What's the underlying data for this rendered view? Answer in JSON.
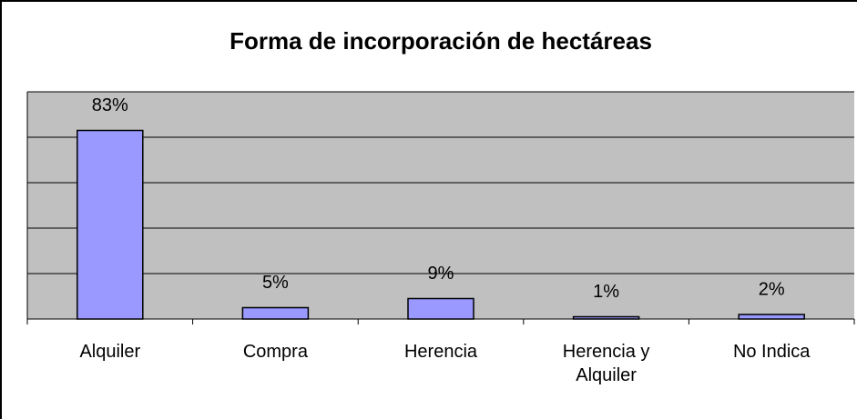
{
  "chart_data": {
    "type": "bar",
    "title": "Forma de incorporación de hectáreas",
    "categories": [
      "Alquiler",
      "Compra",
      "Herencia",
      "Herencia y Alquiler",
      "No Indica"
    ],
    "values": [
      83,
      5,
      9,
      1,
      2
    ],
    "value_labels": [
      "83%",
      "5%",
      "9%",
      "1%",
      "2%"
    ],
    "color": "#9999ff",
    "ylim": [
      0,
      100
    ],
    "yticks": [
      0,
      20,
      40,
      60,
      80,
      100
    ],
    "grid": true
  }
}
